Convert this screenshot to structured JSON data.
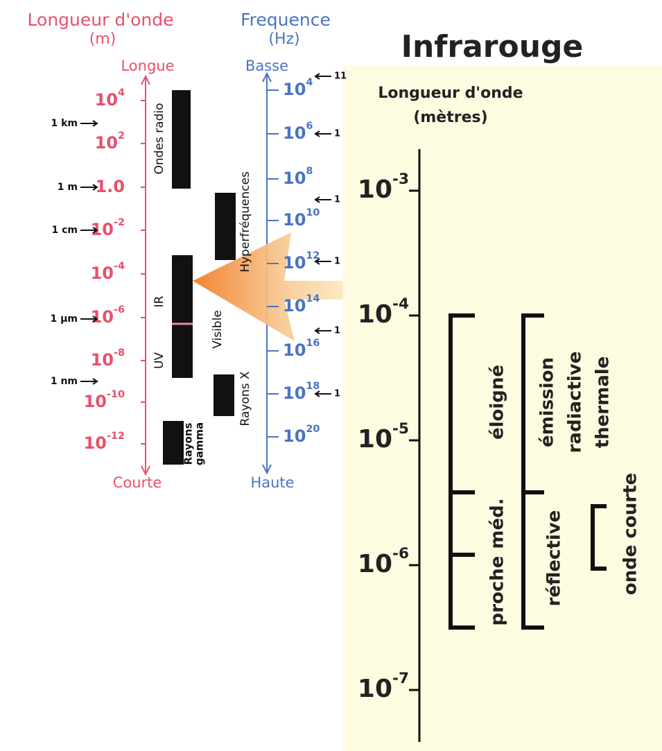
{
  "title": "Infrarouge",
  "spectrum": {
    "wavelength": {
      "title": "Longueur d'onde",
      "unit": "(m)",
      "top": "Longue",
      "bottom": "Courte",
      "ticks": [
        {
          "base": "10",
          "exp": "4"
        },
        {
          "base": "10",
          "exp": "2"
        },
        {
          "base": "1.0"
        },
        {
          "base": "10",
          "exp": "-2"
        },
        {
          "base": "10",
          "exp": "-4"
        },
        {
          "base": "10",
          "exp": "-6"
        },
        {
          "base": "10",
          "exp": "-8"
        },
        {
          "base": "10",
          "exp": "-10"
        },
        {
          "base": "10",
          "exp": "-12"
        }
      ]
    },
    "references": [
      "1 km",
      "1 m",
      "1 cm",
      "1 µm",
      "1 nm"
    ],
    "frequency": {
      "title": "Frequence",
      "unit": "(Hz)",
      "top": "Basse",
      "bottom": "Haute",
      "ticks": [
        {
          "base": "10",
          "exp": "4"
        },
        {
          "base": "10",
          "exp": "6"
        },
        {
          "base": "10",
          "exp": "8"
        },
        {
          "base": "10",
          "exp": "10"
        },
        {
          "base": "10",
          "exp": "12"
        },
        {
          "base": "10",
          "exp": "14"
        },
        {
          "base": "10",
          "exp": "16"
        },
        {
          "base": "10",
          "exp": "18"
        },
        {
          "base": "10",
          "exp": "20"
        }
      ]
    },
    "cut_labels": [
      "11",
      "1",
      "1",
      "1",
      "1",
      "1"
    ],
    "bands": {
      "radio": "Ondes radio",
      "micro": "Hyperfréquences",
      "ir": "IR",
      "visible": "Visible",
      "uv": "UV",
      "xray": "Rayons X",
      "gamma": [
        "Rayons",
        "gamma"
      ]
    }
  },
  "infrared": {
    "axis_title": [
      "Longueur d'onde",
      "(mètres)"
    ],
    "ticks": [
      {
        "base": "10",
        "exp": "-3"
      },
      {
        "base": "10",
        "exp": "-4"
      },
      {
        "base": "10",
        "exp": "-5"
      },
      {
        "base": "10",
        "exp": "-6"
      },
      {
        "base": "10",
        "exp": "-7"
      }
    ],
    "brackets": {
      "far": "éloigné",
      "mid": "méd.",
      "near": "proche",
      "emission": [
        "émission",
        "radiactive",
        "thermale"
      ],
      "reflective": "réflective",
      "short": "onde courte"
    }
  }
}
